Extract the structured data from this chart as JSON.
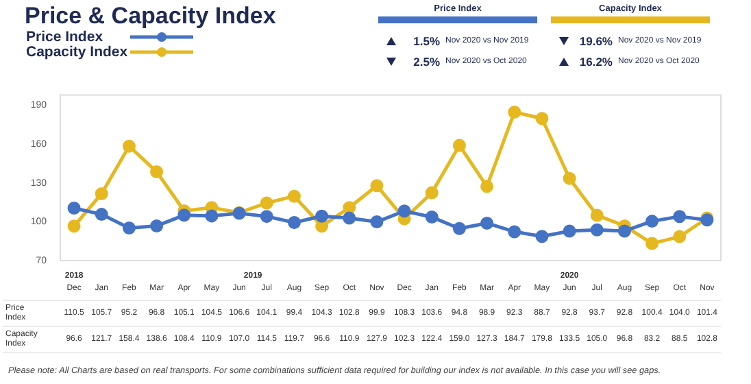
{
  "chart_data": {
    "type": "line",
    "title": "Price & Capacity Index",
    "categories": [
      "Dec",
      "Jan",
      "Feb",
      "Mar",
      "Apr",
      "May",
      "Jun",
      "Jul",
      "Aug",
      "Sep",
      "Oct",
      "Nov",
      "Dec",
      "Jan",
      "Feb",
      "Mar",
      "Apr",
      "May",
      "Jun",
      "Jul",
      "Aug",
      "Sep",
      "Oct",
      "Nov"
    ],
    "series": [
      {
        "name": "Price Index",
        "color": "#4472c4",
        "values": [
          110.5,
          105.7,
          95.2,
          96.8,
          105.1,
          104.5,
          106.6,
          104.1,
          99.4,
          104.3,
          102.8,
          99.9,
          108.3,
          103.6,
          94.8,
          98.9,
          92.3,
          88.7,
          92.8,
          93.7,
          92.8,
          100.4,
          104.0,
          101.4
        ],
        "value_labels": [
          "110.5",
          "105.7",
          "95.2",
          "96.8",
          "105.1",
          "104.5",
          "106.6",
          "104.1",
          "99.4",
          "104.3",
          "102.8",
          "99.9",
          "108.3",
          "103.6",
          "94.8",
          "98.9",
          "92.3",
          "88.7",
          "92.8",
          "93.7",
          "92.8",
          "100.4",
          "104.0",
          "101.4"
        ]
      },
      {
        "name": "Capacity Index",
        "color": "#e6b820",
        "values": [
          96.6,
          121.7,
          158.4,
          138.6,
          108.4,
          110.9,
          107.0,
          114.5,
          119.7,
          96.6,
          110.9,
          127.9,
          102.3,
          122.4,
          159.0,
          127.3,
          184.7,
          179.8,
          133.5,
          105.0,
          96.8,
          83.2,
          88.5,
          102.8
        ],
        "value_labels": [
          "96.6",
          "121.7",
          "158.4",
          "138.6",
          "108.4",
          "110.9",
          "107.0",
          "114.5",
          "119.7",
          "96.6",
          "110.9",
          "127.9",
          "102.3",
          "122.4",
          "159.0",
          "127.3",
          "184.7",
          "179.8",
          "133.5",
          "105.0",
          "96.8",
          "83.2",
          "88.5",
          "102.8"
        ]
      }
    ],
    "ylim": [
      70,
      198
    ],
    "yticks": [
      70,
      100,
      130,
      160,
      190
    ],
    "grid": false,
    "legend": "top left",
    "marker": "circle",
    "line_style": "solid",
    "annotations": [
      "Price Index",
      "1.5%",
      "Nov 2020 vs Nov 2019",
      "2.5%",
      "Nov 2020 vs Oct 2020",
      "Capacity Index",
      "19.6%",
      "Nov 2020 vs Nov 2019",
      "16.2%",
      "Nov 2020 vs Oct 2020",
      "2018",
      "2019",
      "2020",
      "Please note: All Charts are based on real transports. For some combinations sufficient data required for building our index is not available. In this case you will see gaps."
    ]
  }
}
